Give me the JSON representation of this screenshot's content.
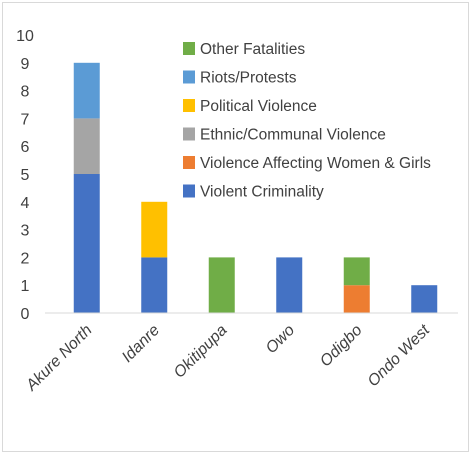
{
  "chart_data": {
    "type": "bar",
    "stacked": true,
    "categories": [
      "Akure North",
      "Idanre",
      "Okitipupa",
      "Owo",
      "Odigbo",
      "Ondo West"
    ],
    "series": [
      {
        "name": "Violent Criminality",
        "color": "#4472C4",
        "values": [
          5,
          2,
          0,
          2,
          0,
          1
        ]
      },
      {
        "name": "Violence Affecting Women & Girls",
        "color": "#ED7D31",
        "values": [
          0,
          0,
          0,
          0,
          1,
          0
        ]
      },
      {
        "name": "Ethnic/Communal Violence",
        "color": "#A5A5A5",
        "values": [
          2,
          0,
          0,
          0,
          0,
          0
        ]
      },
      {
        "name": "Political Violence",
        "color": "#FFC000",
        "values": [
          0,
          2,
          0,
          0,
          0,
          0
        ]
      },
      {
        "name": "Riots/Protests",
        "color": "#5B9BD5",
        "values": [
          2,
          0,
          0,
          0,
          0,
          0
        ]
      },
      {
        "name": "Other Fatalities",
        "color": "#70AD47",
        "values": [
          0,
          0,
          2,
          0,
          1,
          0
        ]
      }
    ],
    "y_ticks": [
      "0",
      "1",
      "2",
      "3",
      "4",
      "5",
      "6",
      "7",
      "8",
      "9",
      "10"
    ],
    "ylim": [
      0,
      10
    ],
    "grid": false,
    "legend_position": "top-right",
    "title": "",
    "xlabel": "",
    "ylabel": ""
  }
}
